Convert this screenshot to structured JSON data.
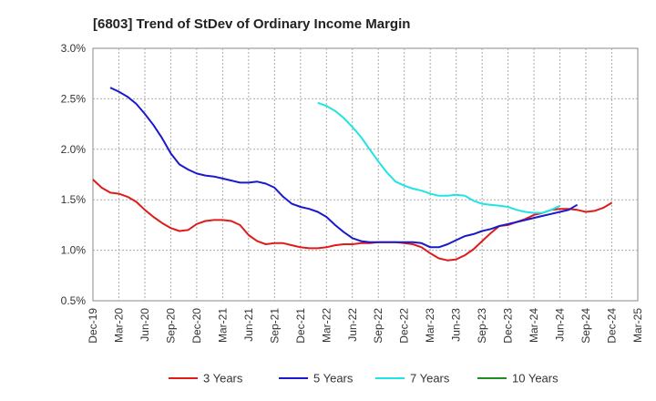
{
  "chart_data": {
    "type": "line",
    "title": "[6803]  Trend of StDev of Ordinary Income Margin",
    "xlabel": "",
    "ylabel": "",
    "ylim": [
      0.5,
      3.0
    ],
    "y_ticks": [
      "0.5%",
      "1.0%",
      "1.5%",
      "2.0%",
      "2.5%",
      "3.0%"
    ],
    "x_ticks": [
      "Dec-19",
      "Mar-20",
      "Jun-20",
      "Sep-20",
      "Dec-20",
      "Mar-21",
      "Jun-21",
      "Sep-21",
      "Dec-21",
      "Mar-22",
      "Jun-22",
      "Sep-22",
      "Dec-22",
      "Mar-23",
      "Jun-23",
      "Sep-23",
      "Dec-23",
      "Mar-24",
      "Jun-24",
      "Sep-24",
      "Dec-24",
      "Mar-25"
    ],
    "grid": true,
    "legend_position": "bottom",
    "series": [
      {
        "name": "3 Years",
        "color": "#dd1c1c",
        "start_index": 0,
        "values": [
          1.7,
          1.62,
          1.57,
          1.56,
          1.53,
          1.48,
          1.4,
          1.33,
          1.27,
          1.22,
          1.19,
          1.2,
          1.26,
          1.29,
          1.3,
          1.3,
          1.29,
          1.25,
          1.15,
          1.09,
          1.06,
          1.07,
          1.07,
          1.05,
          1.03,
          1.02,
          1.02,
          1.03,
          1.05,
          1.06,
          1.06,
          1.07,
          1.07,
          1.08,
          1.08,
          1.08,
          1.07,
          1.06,
          1.03,
          0.97,
          0.92,
          0.9,
          0.91,
          0.95,
          1.01,
          1.09,
          1.17,
          1.24,
          1.25,
          1.28,
          1.31,
          1.35,
          1.37,
          1.4,
          1.41,
          1.41,
          1.4,
          1.38,
          1.39,
          1.42,
          1.47
        ]
      },
      {
        "name": "5 Years",
        "color": "#1a1acc",
        "start_index": 2,
        "values": [
          2.61,
          2.57,
          2.52,
          2.45,
          2.35,
          2.24,
          2.11,
          1.96,
          1.85,
          1.8,
          1.76,
          1.74,
          1.73,
          1.71,
          1.69,
          1.67,
          1.67,
          1.68,
          1.66,
          1.62,
          1.53,
          1.46,
          1.43,
          1.41,
          1.38,
          1.33,
          1.25,
          1.18,
          1.12,
          1.09,
          1.08,
          1.08,
          1.08,
          1.08,
          1.08,
          1.08,
          1.07,
          1.03,
          1.03,
          1.06,
          1.1,
          1.14,
          1.16,
          1.19,
          1.21,
          1.24,
          1.26,
          1.28,
          1.3,
          1.32,
          1.34,
          1.36,
          1.38,
          1.4,
          1.45
        ]
      },
      {
        "name": "7 Years",
        "color": "#22e3e3",
        "start_index": 26,
        "values": [
          2.46,
          2.43,
          2.38,
          2.31,
          2.22,
          2.12,
          2.0,
          1.88,
          1.77,
          1.68,
          1.64,
          1.61,
          1.59,
          1.56,
          1.54,
          1.54,
          1.55,
          1.54,
          1.49,
          1.46,
          1.45,
          1.44,
          1.43,
          1.4,
          1.38,
          1.37,
          1.37,
          1.4,
          1.44
        ]
      },
      {
        "name": "10 Years",
        "color": "#228b22",
        "start_index": 0,
        "values": []
      }
    ]
  }
}
